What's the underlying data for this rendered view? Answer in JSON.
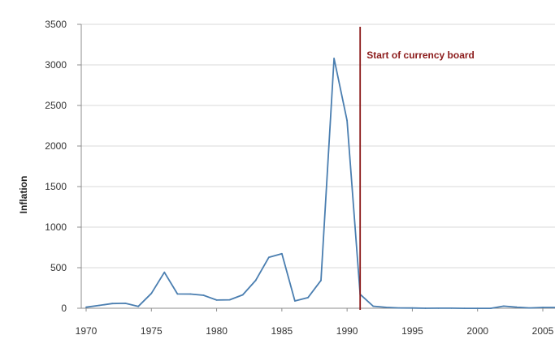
{
  "chart_data": {
    "type": "line",
    "xlabel": "",
    "ylabel": "Inflation",
    "xlim": [
      1970,
      2006
    ],
    "ylim": [
      0,
      3500
    ],
    "x_ticks": [
      1970,
      1975,
      1980,
      1985,
      1990,
      1995,
      2000,
      2005
    ],
    "y_ticks": [
      0,
      500,
      1000,
      1500,
      2000,
      2500,
      3000,
      3500
    ],
    "grid": "horizontal",
    "series": [
      {
        "name": "",
        "color": "#4a7eb0",
        "x": [
          1970,
          1971,
          1972,
          1973,
          1974,
          1975,
          1976,
          1977,
          1978,
          1979,
          1980,
          1981,
          1982,
          1983,
          1984,
          1985,
          1986,
          1987,
          1988,
          1989,
          1990,
          1991,
          1992,
          1993,
          1994,
          1995,
          1996,
          1997,
          1998,
          1999,
          2000,
          2001,
          2002,
          2003,
          2004,
          2005,
          2006
        ],
        "y": [
          13,
          35,
          58,
          61,
          23,
          183,
          443,
          176,
          175,
          160,
          101,
          104,
          165,
          344,
          627,
          672,
          90,
          131,
          343,
          3080,
          2314,
          172,
          25,
          11,
          4,
          3,
          0,
          1,
          1,
          -1,
          -1,
          -1,
          26,
          13,
          4,
          10,
          10
        ]
      }
    ],
    "annotations": [
      {
        "type": "vline",
        "x": 1991,
        "label": "Start of currency board",
        "color": "#8b1a1a"
      }
    ]
  }
}
